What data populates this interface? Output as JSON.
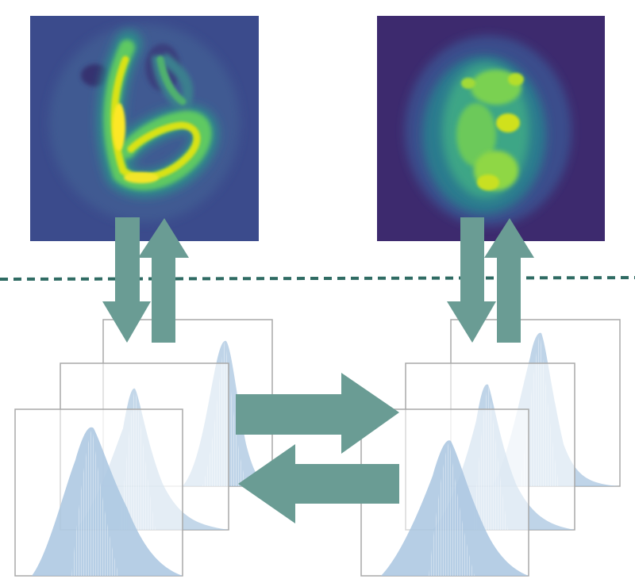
{
  "diagram": {
    "images": [
      {
        "name": "digit-6-heatmap",
        "colormap": "viridis",
        "background": "#3b4b8c"
      },
      {
        "name": "digit-9-heatmap",
        "colormap": "viridis",
        "background": "#3d2a6e"
      }
    ],
    "latent_groups": [
      {
        "name": "left-latent-histograms",
        "panels": 3
      },
      {
        "name": "right-latent-histograms",
        "panels": 3
      }
    ],
    "colors": {
      "arrow": "#6a9c94",
      "dashed_line": "#2f6b63",
      "histogram_fill": "#a9c6e0",
      "panel_border": "#a8a8a8",
      "viridis_dark": "#3d2a6e",
      "viridis_blue": "#3b528b",
      "viridis_teal": "#21918c",
      "viridis_green": "#5ec962",
      "viridis_yellow": "#fde725"
    },
    "icons": [
      "down-arrow-icon",
      "up-arrow-icon",
      "right-arrow-icon",
      "left-arrow-icon"
    ]
  }
}
